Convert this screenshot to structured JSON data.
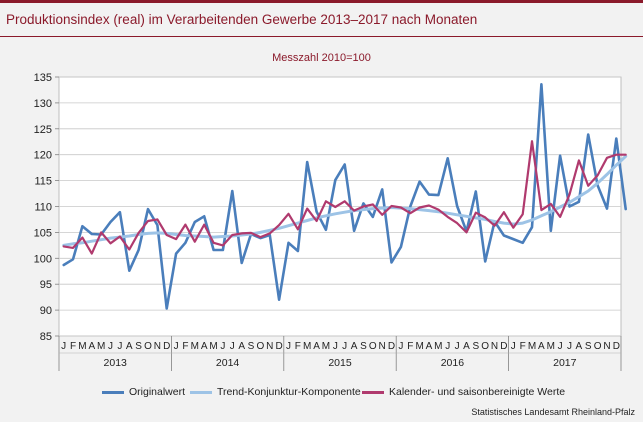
{
  "title": "Produktionsindex (real) im Verarbeitenden Gewerbe 2013–2017 nach Monaten",
  "subtitle": "Messzahl 2010=100",
  "source": "Statistisches Landesamt Rheinland-Pfalz",
  "colors": {
    "original": "#4a7ebb",
    "trend": "#9dc3e6",
    "seasonal": "#b03a6e",
    "brand": "#8b1a2b"
  },
  "chart_data": {
    "type": "line",
    "ylim": [
      85,
      135
    ],
    "yticks": [
      85,
      90,
      95,
      100,
      105,
      110,
      115,
      120,
      125,
      130,
      135
    ],
    "grid": true,
    "legend_position": "bottom",
    "month_labels": [
      "J",
      "F",
      "M",
      "A",
      "M",
      "J",
      "J",
      "A",
      "S",
      "O",
      "N",
      "D"
    ],
    "years": [
      "2013",
      "2014",
      "2015",
      "2016",
      "2017"
    ],
    "series": [
      {
        "name": "Originalwert",
        "values": [
          98.7,
          99.8,
          106.2,
          104.7,
          104.6,
          107.0,
          108.9,
          97.6,
          101.6,
          109.5,
          106.4,
          90.3,
          100.9,
          103.0,
          107.0,
          108.1,
          101.6,
          101.6,
          113.0,
          99.1,
          104.7,
          103.9,
          104.5,
          92.0,
          103.0,
          101.4,
          118.6,
          109.0,
          105.5,
          115.1,
          118.1,
          105.3,
          110.6,
          108.0,
          113.3,
          99.2,
          102.2,
          110.0,
          114.8,
          112.3,
          112.2,
          119.3,
          110.1,
          105.2,
          112.9,
          99.4,
          107.1,
          104.4,
          103.7,
          103.0,
          106.0,
          133.6,
          105.3,
          119.8,
          110.0,
          110.9,
          123.9,
          114.1,
          109.6,
          123.1,
          109.5
        ]
      },
      {
        "name": "Trend-Konjunktur-Komponente",
        "values": [
          102.5,
          102.8,
          103.0,
          103.3,
          103.6,
          103.9,
          104.1,
          104.3,
          104.6,
          104.8,
          104.9,
          104.8,
          104.6,
          104.4,
          104.3,
          104.2,
          104.1,
          104.2,
          104.3,
          104.5,
          104.7,
          105.0,
          105.4,
          105.8,
          106.3,
          106.8,
          107.3,
          107.8,
          108.2,
          108.6,
          108.9,
          109.2,
          109.4,
          109.6,
          109.7,
          109.8,
          109.7,
          109.6,
          109.4,
          109.2,
          109.0,
          108.7,
          108.4,
          108.1,
          107.8,
          107.5,
          107.1,
          106.8,
          106.6,
          106.8,
          107.4,
          108.2,
          109.0,
          109.9,
          110.8,
          111.9,
          113.0,
          114.5,
          116.2,
          118.0,
          119.7
        ]
      },
      {
        "name": "Kalender- und saisonbereinigte Werte",
        "values": [
          102.3,
          102.0,
          104.0,
          100.9,
          105.0,
          102.9,
          104.2,
          101.7,
          104.9,
          107.2,
          107.5,
          104.5,
          103.7,
          106.5,
          103.2,
          106.5,
          103.0,
          102.5,
          104.5,
          104.8,
          104.9,
          104.1,
          104.8,
          106.4,
          108.6,
          105.6,
          109.6,
          107.2,
          111.0,
          109.9,
          111.0,
          109.2,
          110.0,
          110.4,
          108.4,
          110.1,
          109.8,
          108.7,
          109.8,
          110.2,
          109.4,
          108.0,
          106.8,
          105.0,
          108.8,
          107.9,
          106.3,
          108.9,
          105.9,
          108.5,
          122.6,
          109.3,
          110.5,
          108.0,
          112.3,
          118.9,
          114.0,
          116.0,
          119.4,
          120.0,
          120.0
        ]
      }
    ]
  }
}
